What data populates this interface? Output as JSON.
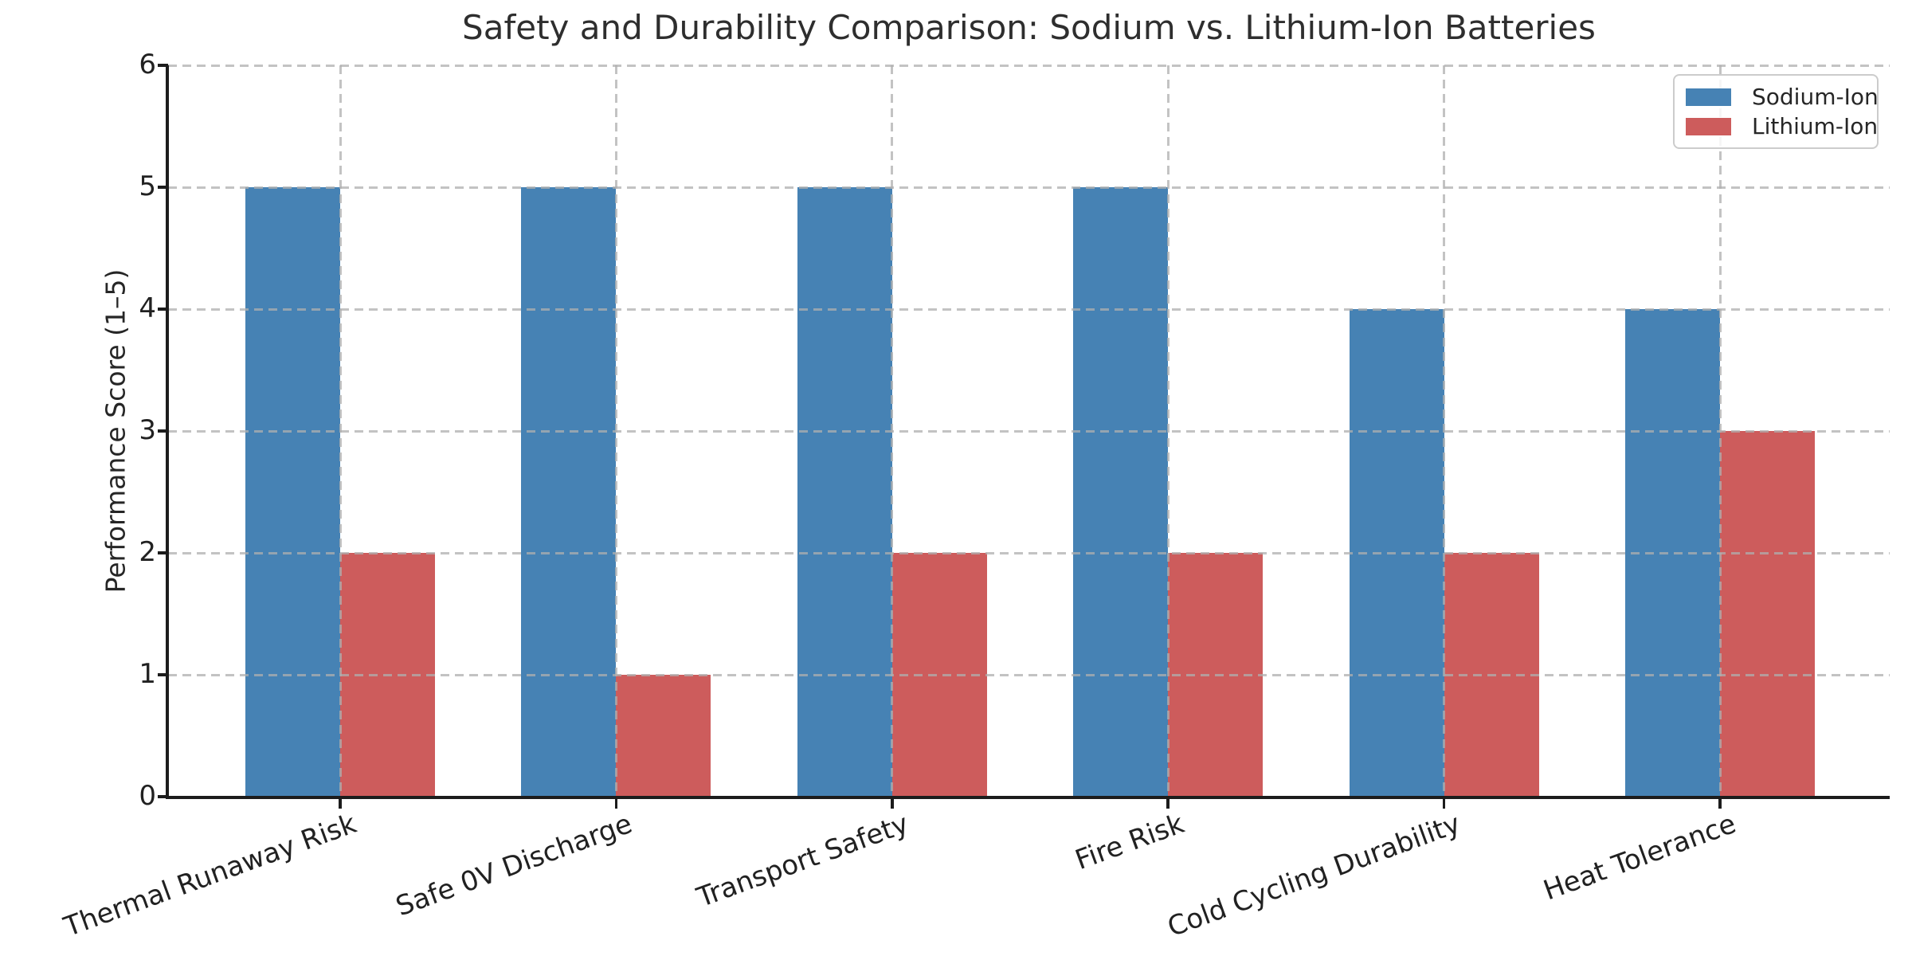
{
  "chart_data": {
    "type": "bar",
    "title": "Safety and Durability Comparison: Sodium vs. Lithium-Ion Batteries",
    "ylabel": "Performance Score (1–5)",
    "xlabel": "",
    "categories": [
      "Thermal Runaway Risk",
      "Safe 0V Discharge",
      "Transport Safety",
      "Fire Risk",
      "Cold Cycling Durability",
      "Heat Tolerance"
    ],
    "series": [
      {
        "name": "Sodium-Ion",
        "color": "#4682b4",
        "values": [
          5,
          5,
          5,
          5,
          4,
          4
        ]
      },
      {
        "name": "Lithium-Ion",
        "color": "#cd5c5c",
        "values": [
          2,
          1,
          2,
          2,
          2,
          3
        ]
      }
    ],
    "yticks": [
      0,
      1,
      2,
      3,
      4,
      5,
      6
    ],
    "ylim": [
      0,
      6
    ],
    "grid": "dashed, horizontal and vertical",
    "legend_position": "upper right",
    "xtick_rotation_deg": 20
  },
  "colors": {
    "sodium_ion": "#4682b4",
    "lithium_ion": "#cd5c5c",
    "grid": "#cccccc",
    "spine": "#1c1c1c",
    "tick_text": "#212121",
    "title_text": "#2e2e2e",
    "background": "#ffffff"
  }
}
